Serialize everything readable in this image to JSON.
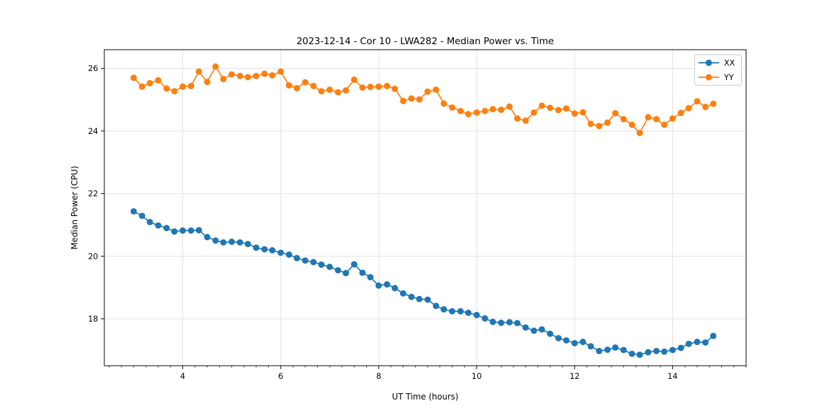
{
  "chart_data": {
    "type": "line",
    "title": "2023-12-14 - Cor 10 - LWA282 - Median Power vs. Time",
    "xlabel": "UT Time (hours)",
    "ylabel": "Median Power (CPU)",
    "xlim": [
      2.4,
      15.5
    ],
    "ylim": [
      16.5,
      26.6
    ],
    "xticks": [
      4,
      6,
      8,
      10,
      12,
      14
    ],
    "x_minor_tick_step": 0.25,
    "yticks": [
      18,
      20,
      22,
      24,
      26
    ],
    "grid": true,
    "legend_position": "upper right",
    "x": [
      3.0,
      3.17,
      3.33,
      3.5,
      3.67,
      3.83,
      4.0,
      4.17,
      4.33,
      4.5,
      4.67,
      4.83,
      5.0,
      5.17,
      5.33,
      5.5,
      5.67,
      5.83,
      6.0,
      6.17,
      6.33,
      6.5,
      6.67,
      6.83,
      7.0,
      7.17,
      7.33,
      7.5,
      7.67,
      7.83,
      8.0,
      8.17,
      8.33,
      8.5,
      8.67,
      8.83,
      9.0,
      9.17,
      9.33,
      9.5,
      9.67,
      9.83,
      10.0,
      10.17,
      10.33,
      10.5,
      10.67,
      10.83,
      11.0,
      11.17,
      11.33,
      11.5,
      11.67,
      11.83,
      12.0,
      12.17,
      12.33,
      12.5,
      12.67,
      12.83,
      13.0,
      13.17,
      13.33,
      13.5,
      13.67,
      13.83,
      14.0,
      14.17,
      14.33,
      14.5,
      14.67,
      14.83
    ],
    "series": [
      {
        "name": "XX",
        "color": "#1f77b4",
        "values": [
          21.43,
          21.29,
          21.09,
          20.98,
          20.9,
          20.79,
          20.82,
          20.82,
          20.83,
          20.61,
          20.5,
          20.44,
          20.46,
          20.44,
          20.39,
          20.27,
          20.22,
          20.19,
          20.11,
          20.05,
          19.94,
          19.86,
          19.81,
          19.73,
          19.66,
          19.55,
          19.46,
          19.74,
          19.47,
          19.33,
          19.06,
          19.1,
          18.98,
          18.81,
          18.7,
          18.63,
          18.61,
          18.41,
          18.3,
          18.24,
          18.24,
          18.19,
          18.12,
          18.01,
          17.9,
          17.87,
          17.89,
          17.86,
          17.72,
          17.62,
          17.66,
          17.52,
          17.38,
          17.31,
          17.22,
          17.26,
          17.12,
          16.97,
          17.01,
          17.08,
          17.0,
          16.88,
          16.85,
          16.93,
          16.97,
          16.95,
          17.0,
          17.07,
          17.2,
          17.26,
          17.24,
          17.45
        ]
      },
      {
        "name": "YY",
        "color": "#ff7f0e",
        "values": [
          25.7,
          25.42,
          25.53,
          25.62,
          25.36,
          25.27,
          25.42,
          25.44,
          25.9,
          25.57,
          26.06,
          25.66,
          25.81,
          25.76,
          25.72,
          25.76,
          25.83,
          25.78,
          25.9,
          25.46,
          25.37,
          25.56,
          25.44,
          25.27,
          25.32,
          25.24,
          25.3,
          25.64,
          25.39,
          25.41,
          25.42,
          25.44,
          25.35,
          24.96,
          25.04,
          25.01,
          25.26,
          25.32,
          24.88,
          24.75,
          24.64,
          24.54,
          24.59,
          24.64,
          24.7,
          24.68,
          24.78,
          24.4,
          24.33,
          24.59,
          24.81,
          24.74,
          24.67,
          24.72,
          24.56,
          24.6,
          24.23,
          24.16,
          24.27,
          24.57,
          24.38,
          24.2,
          23.94,
          24.44,
          24.38,
          24.2,
          24.4,
          24.58,
          24.73,
          24.95,
          24.77,
          24.87
        ]
      }
    ],
    "colors": {
      "grid": "#e0e0e0",
      "spine": "#000000",
      "background": "#ffffff"
    }
  }
}
